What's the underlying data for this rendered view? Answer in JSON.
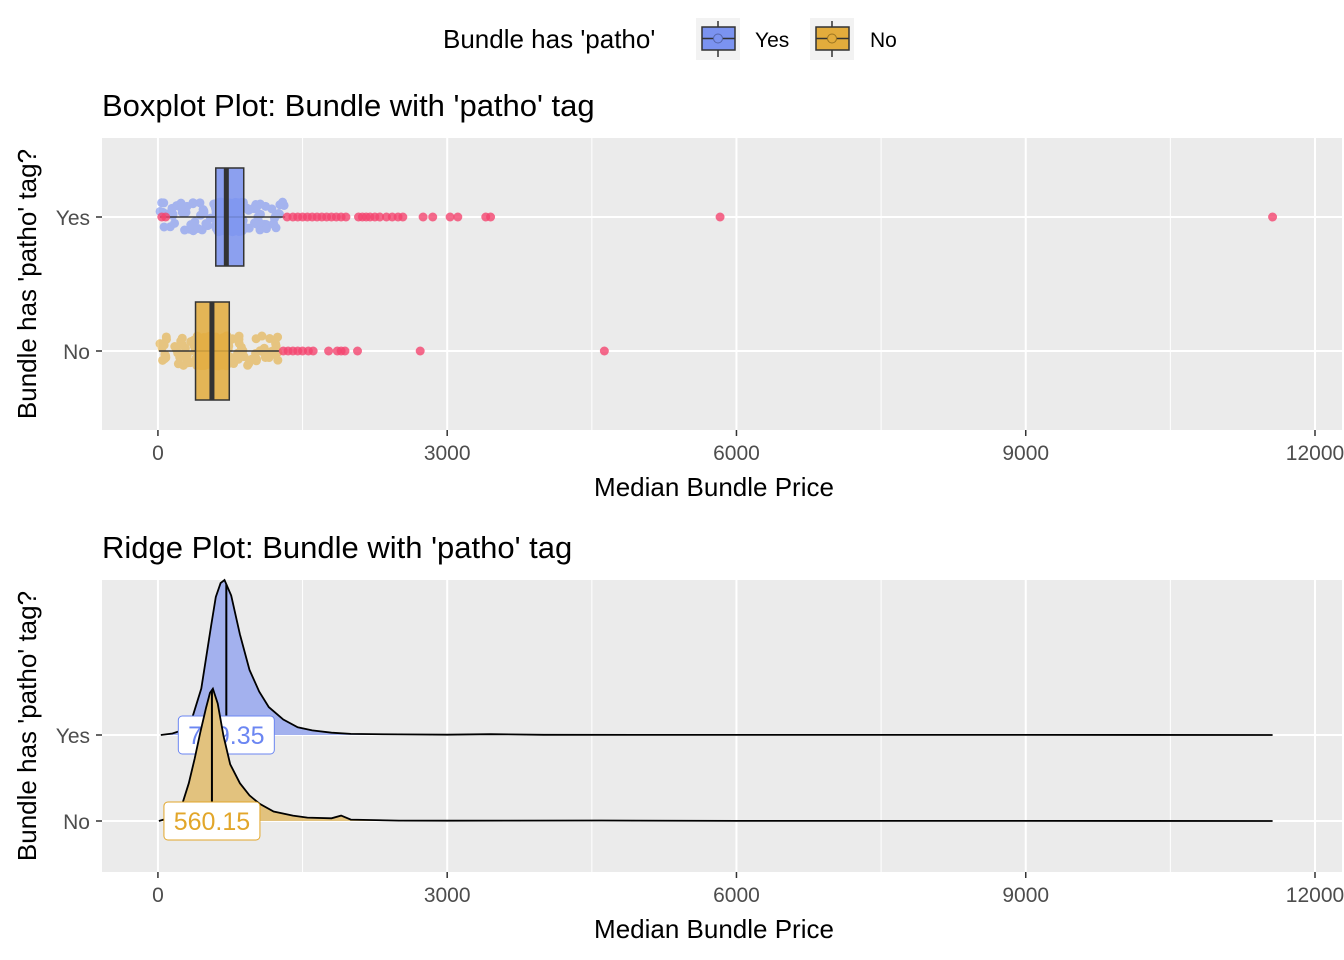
{
  "legend": {
    "title": "Bundle has 'patho'",
    "items": [
      {
        "label": "Yes",
        "fill": "#7b93f0",
        "stroke": "#333333"
      },
      {
        "label": "No",
        "fill": "#e3ac3c",
        "stroke": "#333333"
      }
    ]
  },
  "colors": {
    "panel_bg": "#ebebeb",
    "grid": "#ffffff",
    "yes": "#6b86f2",
    "no": "#e2a62a",
    "outlier": "#f4456f",
    "ridge_yes": "#a3b1ee",
    "ridge_no": "#e2c27e",
    "label_yes": "#6b86f2",
    "label_no": "#e2a62a"
  },
  "chart_data": [
    {
      "type": "boxplot",
      "title": "Boxplot Plot: Bundle with 'patho' tag",
      "xlabel": "Median Bundle Price",
      "ylabel": "Bundle has 'patho' tag?",
      "xlim": [
        -580,
        12280
      ],
      "xticks": [
        0,
        3000,
        6000,
        9000,
        12000
      ],
      "xtick_labels": [
        "0",
        "3000",
        "6000",
        "9000",
        "12000"
      ],
      "categories": [
        "Yes",
        "No"
      ],
      "series": [
        {
          "name": "Yes",
          "whisker_low": 20,
          "q1": 600,
          "median": 709.35,
          "q3": 890,
          "whisker_high": 1320,
          "outliers": [
            40,
            80,
            1340,
            1400,
            1450,
            1500,
            1550,
            1600,
            1650,
            1700,
            1750,
            1800,
            1850,
            1900,
            1950,
            2080,
            2120,
            2160,
            2200,
            2250,
            2300,
            2370,
            2430,
            2490,
            2540,
            2750,
            2850,
            3030,
            3110,
            3400,
            3450,
            5830,
            11560
          ]
        },
        {
          "name": "No",
          "whisker_low": 10,
          "q1": 390,
          "median": 560.15,
          "q3": 740,
          "whisker_high": 1260,
          "outliers": [
            1300,
            1350,
            1400,
            1450,
            1500,
            1560,
            1610,
            1770,
            1860,
            1900,
            1940,
            2070,
            2720,
            4630
          ]
        }
      ]
    },
    {
      "type": "ridge",
      "title": "Ridge Plot: Bundle with 'patho' tag",
      "xlabel": "Median Bundle Price",
      "ylabel": "Bundle has 'patho' tag?",
      "xlim": [
        -580,
        12280
      ],
      "xticks": [
        0,
        3000,
        6000,
        9000,
        12000
      ],
      "xtick_labels": [
        "0",
        "3000",
        "6000",
        "9000",
        "12000"
      ],
      "categories": [
        "Yes",
        "No"
      ],
      "series": [
        {
          "name": "Yes",
          "median": 709.35,
          "median_label": "709.35",
          "density": [
            [
              30,
              0
            ],
            [
              150,
              0.01
            ],
            [
              250,
              0.03
            ],
            [
              350,
              0.1
            ],
            [
              450,
              0.3
            ],
            [
              550,
              0.7
            ],
            [
              600,
              0.89
            ],
            [
              650,
              0.98
            ],
            [
              690,
              1.0
            ],
            [
              760,
              0.9
            ],
            [
              850,
              0.65
            ],
            [
              950,
              0.42
            ],
            [
              1050,
              0.28
            ],
            [
              1150,
              0.18
            ],
            [
              1300,
              0.1
            ],
            [
              1450,
              0.05
            ],
            [
              1600,
              0.03
            ],
            [
              1800,
              0.015
            ],
            [
              2000,
              0.007
            ],
            [
              2500,
              0.004
            ],
            [
              3000,
              0.002
            ],
            [
              3450,
              0.005
            ],
            [
              4000,
              0.001
            ],
            [
              6000,
              0.0008
            ],
            [
              9000,
              0.0005
            ],
            [
              11560,
              0
            ]
          ]
        },
        {
          "name": "No",
          "median": 560.15,
          "median_label": "560.15",
          "density": [
            [
              10,
              0
            ],
            [
              150,
              0.03
            ],
            [
              250,
              0.12
            ],
            [
              320,
              0.28
            ],
            [
              380,
              0.46
            ],
            [
              440,
              0.66
            ],
            [
              500,
              0.84
            ],
            [
              540,
              0.95
            ],
            [
              570,
              0.98
            ],
            [
              620,
              0.87
            ],
            [
              680,
              0.63
            ],
            [
              750,
              0.42
            ],
            [
              850,
              0.28
            ],
            [
              950,
              0.19
            ],
            [
              1050,
              0.13
            ],
            [
              1200,
              0.07
            ],
            [
              1400,
              0.04
            ],
            [
              1550,
              0.025
            ],
            [
              1800,
              0.02
            ],
            [
              1900,
              0.04
            ],
            [
              2000,
              0.01
            ],
            [
              2500,
              0.003
            ],
            [
              3000,
              0.002
            ],
            [
              4600,
              0.004
            ],
            [
              6000,
              0.001
            ],
            [
              9000,
              0.0005
            ],
            [
              11560,
              0
            ]
          ]
        }
      ]
    }
  ]
}
